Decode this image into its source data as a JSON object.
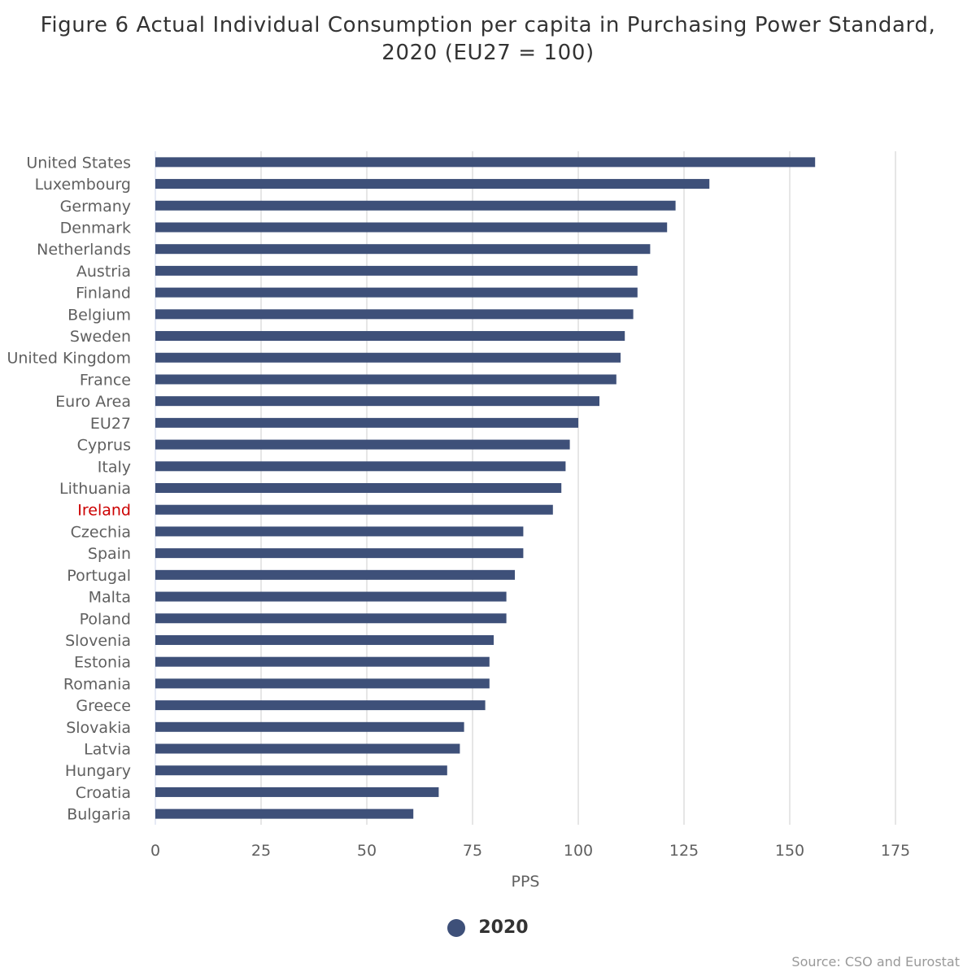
{
  "title_lines": [
    "Figure 6 Actual Individual Consumption per capita in Purchasing Power Standard,",
    "2020 (EU27 = 100)"
  ],
  "colors": {
    "series": "#3e5079",
    "highlight_label": "#cc0000",
    "grid": "#e6e6e6",
    "axis_line": "#ccd6eb"
  },
  "legend": {
    "label": "2020"
  },
  "credits": "Source: CSO and Eurostat",
  "highlight_category": "Ireland",
  "chart_data": {
    "type": "bar",
    "orientation": "horizontal",
    "title": "Figure 6 Actual Individual Consumption per capita in Purchasing Power Standard, 2020 (EU27 = 100)",
    "xlabel": "PPS",
    "ylabel": "",
    "xlim": [
      0,
      175
    ],
    "xticks": [
      0,
      25,
      50,
      75,
      100,
      125,
      150,
      175
    ],
    "grid": true,
    "legend_position": "bottom-center",
    "categories": [
      "United States",
      "Luxembourg",
      "Germany",
      "Denmark",
      "Netherlands",
      "Austria",
      "Finland",
      "Belgium",
      "Sweden",
      "United Kingdom",
      "France",
      "Euro Area",
      "EU27",
      "Cyprus",
      "Italy",
      "Lithuania",
      "Ireland",
      "Czechia",
      "Spain",
      "Portugal",
      "Malta",
      "Poland",
      "Slovenia",
      "Estonia",
      "Romania",
      "Greece",
      "Slovakia",
      "Latvia",
      "Hungary",
      "Croatia",
      "Bulgaria"
    ],
    "series": [
      {
        "name": "2020",
        "values": [
          156,
          131,
          123,
          121,
          117,
          114,
          114,
          113,
          111,
          110,
          109,
          105,
          100,
          98,
          97,
          96,
          94,
          87,
          87,
          85,
          83,
          83,
          80,
          79,
          79,
          78,
          73,
          72,
          69,
          67,
          61
        ]
      }
    ]
  }
}
